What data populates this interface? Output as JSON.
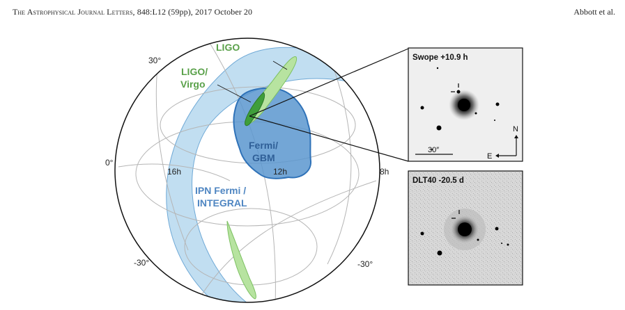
{
  "header": {
    "journal": "The Astrophysical Journal Letters",
    "citation": ", 848:L12 (59pp), 2017 October 20",
    "authors": "Abbott et al."
  },
  "sky_map": {
    "declination_labels": [
      "30°",
      "0°",
      "-30°",
      "-30°"
    ],
    "right_ascension_labels": [
      "16h",
      "12h",
      "8h"
    ],
    "region_labels": {
      "ligo": "LIGO",
      "ligo_virgo_line1": "LIGO/",
      "ligo_virgo_line2": "Virgo",
      "fermi_gbm_line1": "Fermi/",
      "fermi_gbm_line2": "GBM",
      "ipn_line1": "IPN Fermi /",
      "ipn_line2": "INTEGRAL"
    },
    "colors": {
      "ligo": "#5aa14a",
      "ligo_fill": "#b7e3a0",
      "ipn": "#8ec3e6",
      "fermi": "#2f72b8",
      "fermi_fill": "#5b96cf"
    }
  },
  "insets": {
    "swope": {
      "title": "Swope +10.9 h",
      "scale_label": "30″",
      "north": "N",
      "east": "E"
    },
    "dlt40": {
      "title": "DLT40 -20.5 d"
    }
  }
}
